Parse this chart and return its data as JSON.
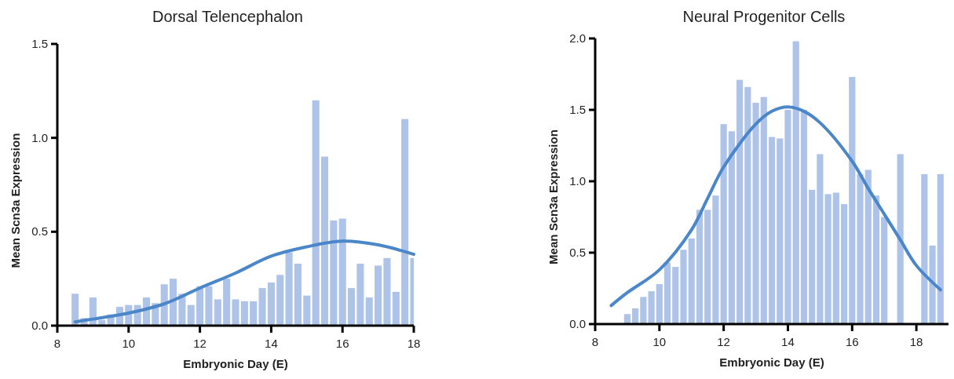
{
  "chart_data": [
    {
      "type": "bar",
      "title": "Dorsal Telencephalon",
      "xlabel": "Embryonic Day (E)",
      "ylabel": "Mean Scn3a Expression",
      "xlim": [
        8,
        18
      ],
      "xticks": [
        8,
        10,
        12,
        14,
        16,
        18
      ],
      "ylim": [
        0,
        1.5
      ],
      "yticks": [
        {
          "value": 0,
          "label": "0.0"
        },
        {
          "value": 0.5,
          "label": "0.5"
        },
        {
          "value": 1,
          "label": "1.0"
        },
        {
          "value": 1.5,
          "label": "1.5"
        }
      ],
      "grid": false,
      "x": [
        8.5,
        8.75,
        9,
        9.25,
        9.5,
        9.75,
        10,
        10.25,
        10.5,
        10.75,
        11,
        11.25,
        11.5,
        11.75,
        12,
        12.25,
        12.5,
        12.75,
        13,
        13.25,
        13.5,
        13.75,
        14,
        14.25,
        14.5,
        14.75,
        15,
        15.25,
        15.5,
        15.75,
        16,
        16.25,
        16.5,
        16.75,
        17,
        17.25,
        17.5,
        17.75,
        18
      ],
      "series": [
        {
          "color": "#aec3e8",
          "values": [
            0.17,
            0.04,
            0.15,
            0.03,
            0.06,
            0.1,
            0.11,
            0.11,
            0.15,
            0.12,
            0.22,
            0.25,
            0.17,
            0.11,
            0.21,
            0.21,
            0.14,
            0.25,
            0.14,
            0.13,
            0.13,
            0.2,
            0.23,
            0.27,
            0.39,
            0.33,
            0.16,
            1.2,
            0.9,
            0.56,
            0.57,
            0.2,
            0.33,
            0.15,
            0.32,
            0.36,
            0.18,
            1.1,
            0.36
          ]
        },
        {
          "type": "line",
          "color": "#4a86c8",
          "x": [
            8.5,
            9,
            9.5,
            10,
            11,
            12,
            13,
            14,
            15,
            16,
            17,
            18
          ],
          "values": [
            0.02,
            0.035,
            0.05,
            0.067,
            0.116,
            0.2,
            0.28,
            0.37,
            0.42,
            0.45,
            0.43,
            0.38
          ]
        }
      ]
    },
    {
      "type": "bar",
      "title": "Neural Progenitor Cells",
      "xlabel": "Embryonic Day (E)",
      "ylabel": "Mean Scn3a Expression",
      "xlim": [
        8,
        19
      ],
      "xticks": [
        8,
        10,
        12,
        14,
        16,
        18
      ],
      "ylim": [
        0,
        2
      ],
      "yticks": [
        {
          "value": 0,
          "label": "0.0"
        },
        {
          "value": 0.5,
          "label": "0.5"
        },
        {
          "value": 1,
          "label": "1.0"
        },
        {
          "value": 1.5,
          "label": "1.5"
        },
        {
          "value": 2,
          "label": "2.0"
        }
      ],
      "grid": false,
      "x": [
        9,
        9.25,
        9.5,
        9.75,
        10,
        10.25,
        10.5,
        10.75,
        11,
        11.25,
        11.5,
        11.75,
        12,
        12.25,
        12.5,
        12.75,
        13,
        13.25,
        13.5,
        13.75,
        14,
        14.25,
        14.5,
        14.75,
        15,
        15.25,
        15.5,
        15.75,
        16,
        16.25,
        16.5,
        16.75,
        17,
        17.25,
        17.5,
        17.75,
        18,
        18.25,
        18.5,
        18.75
      ],
      "series": [
        {
          "color": "#aec3e8",
          "values": [
            0.07,
            0.11,
            0.19,
            0.23,
            0.28,
            0.43,
            0.4,
            0.52,
            0.6,
            0.8,
            0.8,
            0.9,
            1.4,
            1.35,
            1.71,
            1.66,
            1.55,
            1.59,
            1.31,
            1.3,
            1.5,
            1.98,
            1.5,
            0.94,
            1.19,
            0.91,
            0.92,
            0.84,
            1.73,
            1.05,
            1.08,
            0.9,
            0.75,
            null,
            1.19,
            null,
            null,
            1.05,
            0.55,
            1.05
          ]
        },
        {
          "type": "line",
          "color": "#4a86c8",
          "x": [
            8.5,
            9,
            10,
            11,
            11.5,
            12,
            13,
            13.5,
            14,
            14.5,
            15,
            16,
            16.5,
            17,
            17.5,
            18,
            18.75
          ],
          "values": [
            0.13,
            0.22,
            0.38,
            0.66,
            0.88,
            1.1,
            1.4,
            1.49,
            1.52,
            1.49,
            1.41,
            1.14,
            0.95,
            0.77,
            0.59,
            0.41,
            0.24
          ]
        }
      ]
    }
  ]
}
